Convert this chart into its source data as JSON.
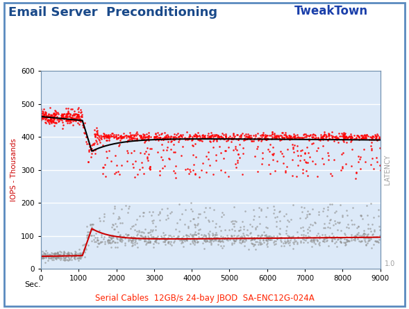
{
  "title": "Email Server  Preconditioning",
  "xlabel": "Sec.",
  "ylabel_left": "IOPS - Thousands",
  "ylabel_right": "LATENCY",
  "x_min": 0,
  "x_max": 9000,
  "y_min": 0,
  "y_max": 600,
  "x_ticks": [
    0,
    1000,
    2000,
    3000,
    4000,
    5000,
    6000,
    7000,
    8000,
    9000
  ],
  "y_ticks": [
    0,
    100,
    200,
    300,
    400,
    500,
    600
  ],
  "right_y_label_val": "1.0",
  "fig_bg_color": "#ffffff",
  "outer_border_color": "#7fa8d0",
  "plot_bg_color": "#ccddf0",
  "plot_bg_color2": "#dce9f8",
  "grid_color": "#ffffff",
  "red_scatter_color": "#ff0000",
  "gray_scatter_color": "#909090",
  "black_line_color": "#000000",
  "red_line_color": "#cc0000",
  "subtitle": "Serial Cables  12GB/s 24-bay JBOD  SA-ENC12G-024A",
  "subtitle_color": "#ff2200",
  "title_color": "#1a4a8a",
  "ylabel_left_color": "#cc0000",
  "ylabel_right_color": "#a0a0a0"
}
